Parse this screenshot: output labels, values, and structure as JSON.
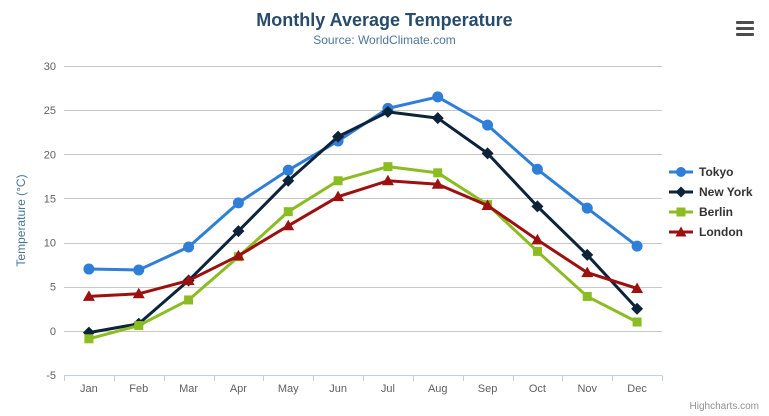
{
  "chart": {
    "title": "Monthly Average Temperature",
    "subtitle": "Source: WorldClimate.com",
    "credits": "Highcharts.com",
    "background_color": "#ffffff",
    "title_color": "#274b6d",
    "subtitle_color": "#4d759e",
    "grid_color": "#c8c8c8",
    "axis_line_color": "#c0d0e0",
    "tick_label_color": "#606060",
    "axis_title_color": "#4d759e",
    "legend_text_color": "#333333",
    "credits_color": "#909090",
    "menu_icon": "hamburger-icon"
  },
  "chart_data": {
    "type": "line",
    "title": "Monthly Average Temperature",
    "subtitle": "Source: WorldClimate.com",
    "xlabel": "",
    "ylabel": "Temperature (°C)",
    "ylim": [
      -5,
      30
    ],
    "ytick_step": 5,
    "grid": true,
    "legend_position": "right",
    "categories": [
      "Jan",
      "Feb",
      "Mar",
      "Apr",
      "May",
      "Jun",
      "Jul",
      "Aug",
      "Sep",
      "Oct",
      "Nov",
      "Dec"
    ],
    "series": [
      {
        "name": "Tokyo",
        "color": "#2f7ed8",
        "marker": "circle",
        "values": [
          7.0,
          6.9,
          9.5,
          14.5,
          18.2,
          21.5,
          25.2,
          26.5,
          23.3,
          18.3,
          13.9,
          9.6
        ]
      },
      {
        "name": "New York",
        "color": "#0d233a",
        "marker": "diamond",
        "values": [
          -0.2,
          0.8,
          5.7,
          11.3,
          17.0,
          22.0,
          24.8,
          24.1,
          20.1,
          14.1,
          8.6,
          2.5
        ]
      },
      {
        "name": "Berlin",
        "color": "#8bbc21",
        "marker": "square",
        "values": [
          -0.9,
          0.6,
          3.5,
          8.4,
          13.5,
          17.0,
          18.6,
          17.9,
          14.3,
          9.0,
          3.9,
          1.0
        ]
      },
      {
        "name": "London",
        "color": "#9c1010",
        "marker": "triangle",
        "values": [
          3.9,
          4.2,
          5.7,
          8.5,
          11.9,
          15.2,
          17.0,
          16.6,
          14.2,
          10.3,
          6.6,
          4.8
        ]
      }
    ]
  }
}
